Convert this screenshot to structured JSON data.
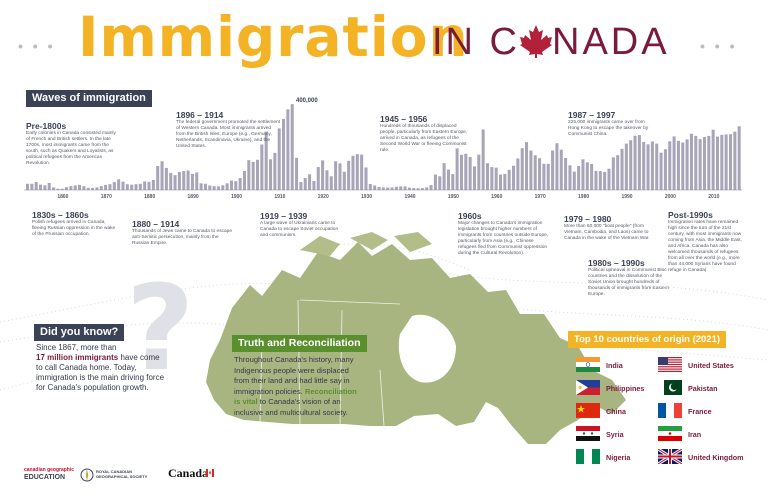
{
  "header": {
    "title_main": "Immigration",
    "title_sub_1": "IN C",
    "title_sub_2": "NADA"
  },
  "waves": {
    "heading": "Waves of immigration",
    "peak_label": "400,000",
    "axis_years": [
      "1860",
      "1870",
      "1880",
      "1890",
      "1900",
      "1910",
      "1920",
      "1930",
      "1940",
      "1950",
      "1960",
      "1970",
      "1980",
      "1990",
      "2000",
      "2010"
    ],
    "top_periods": [
      {
        "period": "Pre-1800s",
        "text": "Early colonies in Canada consisted mainly of French and British settlers. In the late 1700s, most immigrants came from the south, such as Quakers and Loyalists, as political refugees from the American Revolution."
      },
      {
        "period": "1896 – 1914",
        "text": "The federal government promoted the settlement of Western Canada. Most immigrants arrived from the British Isles, Europe (e.g., Germany, Netherlands, Scandinavia, Ukraine), and the United States."
      },
      {
        "period": "1945 – 1956",
        "text": "Hundreds of thousands of displaced people, particularly from Eastern Europe, arrived in Canada, as refugees of the Second World War or fleeing Communist rule."
      },
      {
        "period": "1987 – 1997",
        "text": "225,000 immigrants came over from Hong Kong to escape the takeover by Communist China."
      }
    ],
    "bottom_periods": [
      {
        "period": "1830s – 1860s",
        "text": "Polish refugees arrived in Canada, fleeing Russian oppression in the wake of the Prussian occupation."
      },
      {
        "period": "1880 – 1914",
        "text": "Thousands of Jews came to Canada to escape anti-Semitic persecution, mainly from the Russian Empire."
      },
      {
        "period": "1919 – 1939",
        "text": "A large wave of Ukrainians came to Canada to escape Soviet occupation and communism."
      },
      {
        "period": "1960s",
        "text": "Major changes to Canada's immigration legislation brought higher numbers of immigrants from countries outside Europe, particularly from Asia (e.g., Chinese refugees fled from Communist oppression during the Cultural Revolution)."
      },
      {
        "period": "1979 – 1980",
        "text": "More than 60,000 \"boat people\" (from Vietnam, Cambodia, and Laos) came to Canada in the wake of the Vietnam War."
      },
      {
        "period": "1980s – 1990s",
        "text": "Political upheaval in Communist Bloc countries and the dissolution of the Soviet Union brought hundreds of thousands of immigrants from Eastern Europe."
      },
      {
        "period": "Post-1990s",
        "text": "Immigration rates have remained high since the turn of the 21st century, with most immigrants now coming from Asia, the Middle East, and Africa. Canada has also welcomed thousands of refugees from all over the world (e.g., more than 44,000 Syrians have found refuge in Canada)."
      }
    ]
  },
  "chart_data": {
    "type": "bar",
    "title": "Waves of immigration",
    "x_ticks": [
      "1860",
      "1870",
      "1880",
      "1890",
      "1900",
      "1910",
      "1920",
      "1930",
      "1940",
      "1950",
      "1960",
      "1970",
      "1980",
      "1990",
      "2000",
      "2010"
    ],
    "annotation": "400,000",
    "ylim": [
      0,
      410000
    ],
    "series": [
      {
        "x": [
          1852,
          1853,
          1854,
          1855,
          1856,
          1857,
          1858,
          1859,
          1860,
          1861,
          1862,
          1863,
          1864,
          1865,
          1866,
          1867,
          1868,
          1869,
          1870,
          1871,
          1872,
          1873,
          1874,
          1875,
          1876,
          1877,
          1878,
          1879,
          1880,
          1881,
          1882,
          1883,
          1884,
          1885,
          1886,
          1887,
          1888,
          1889,
          1890,
          1891,
          1892,
          1893,
          1894,
          1895,
          1896,
          1897,
          1898,
          1899,
          1900,
          1901,
          1902,
          1903,
          1904,
          1905,
          1906,
          1907,
          1908,
          1909,
          1910,
          1911,
          1912,
          1913,
          1914,
          1915,
          1916,
          1917,
          1918,
          1919,
          1920,
          1921,
          1922,
          1923,
          1924,
          1925,
          1926,
          1927,
          1928,
          1929,
          1930,
          1931,
          1932,
          1933,
          1934,
          1935,
          1936,
          1937,
          1938,
          1939,
          1940,
          1941,
          1942,
          1943,
          1944,
          1945,
          1946,
          1947,
          1948,
          1949,
          1950,
          1951,
          1952,
          1953,
          1954,
          1955,
          1956,
          1957,
          1958,
          1959,
          1960,
          1961,
          1962,
          1963,
          1964,
          1965,
          1966,
          1967,
          1968,
          1969,
          1970,
          1971,
          1972,
          1973,
          1974,
          1975,
          1976,
          1977,
          1978,
          1979,
          1980,
          1981,
          1982,
          1983,
          1984,
          1985,
          1986,
          1987,
          1988,
          1989,
          1990,
          1991,
          1992,
          1993,
          1994,
          1995,
          1996,
          1997,
          1998,
          1999,
          2000,
          2001,
          2002,
          2003,
          2004,
          2005,
          2006,
          2007,
          2008,
          2009,
          2010,
          2011,
          2012,
          2013,
          2014,
          2015,
          2016
        ],
        "values": [
          29000,
          29000,
          37000,
          25000,
          22000,
          33000,
          12000,
          6000,
          6000,
          13000,
          18000,
          21000,
          24000,
          18000,
          10000,
          10000,
          12000,
          18000,
          24000,
          27000,
          37000,
          50000,
          39000,
          27000,
          25000,
          27000,
          29000,
          40000,
          38000,
          47000,
          112000,
          134000,
          103000,
          79000,
          69000,
          84000,
          88000,
          91000,
          75000,
          82000,
          31000,
          29000,
          21000,
          18000,
          17000,
          22000,
          31000,
          44000,
          41000,
          56000,
          89000,
          139000,
          131000,
          141000,
          212000,
          272000,
          143000,
          173000,
          287000,
          331000,
          376000,
          400000,
          150000,
          37000,
          56000,
          73000,
          42000,
          107000,
          138000,
          92000,
          64000,
          134000,
          124000,
          85000,
          136000,
          159000,
          167000,
          165000,
          105000,
          28000,
          21000,
          14000,
          12000,
          11000,
          12000,
          15000,
          17000,
          17000,
          11000,
          9000,
          8000,
          9000,
          12000,
          23000,
          72000,
          64000,
          125000,
          95000,
          74000,
          194000,
          164000,
          169000,
          154000,
          110000,
          165000,
          282000,
          125000,
          107000,
          104000,
          72000,
          75000,
          94000,
          113000,
          147000,
          195000,
          223000,
          184000,
          162000,
          148000,
          122000,
          122000,
          184000,
          218000,
          188000,
          149000,
          115000,
          86000,
          112000,
          143000,
          129000,
          121000,
          89000,
          88000,
          84000,
          99000,
          152000,
          162000,
          192000,
          216000,
          232000,
          253000,
          256000,
          224000,
          213000,
          226000,
          216000,
          174000,
          190000,
          227000,
          250000,
          229000,
          221000,
          236000,
          262000,
          252000,
          237000,
          247000,
          252000,
          281000,
          249000,
          257000,
          259000,
          260000,
          272000,
          297000
        ]
      }
    ]
  },
  "did_you_know": {
    "heading": "Did you know?",
    "question_mark": "?",
    "line1": "Since 1867, more than",
    "highlight": "17 million immigrants",
    "line2": "have come to call Canada home. Today, immigration is the main driving force for Canada's population growth."
  },
  "truth": {
    "heading": "Truth and Reconciliation",
    "text1": "Throughout Canada's history, many Indigenous people were displaced from their land and had little say in immigration policies.",
    "highlight": "Reconciliation is vital",
    "text2": "to Canada's vision of an inclusive and multicultural society."
  },
  "top10": {
    "heading": "Top 10 countries of origin (2021)",
    "left": [
      "India",
      "Philippines",
      "China",
      "Syria",
      "Nigeria"
    ],
    "right": [
      "United States",
      "Pakistan",
      "France",
      "Iran",
      "United Kingdom"
    ]
  },
  "footer": {
    "logo1_top": "canadian geographic",
    "logo1_bottom": "EDUCATION",
    "logo2_line1": "ROYAL CANADIAN",
    "logo2_line2": "GEOGRAPHICAL SOCIETY",
    "logo3": "Canada"
  },
  "colors": {
    "gold": "#f4b324",
    "maroon": "#7a1b3a",
    "navy": "#3c4256",
    "green": "#5a8f2d",
    "bars": "#a8a5b8",
    "map": "#9aa86a"
  }
}
